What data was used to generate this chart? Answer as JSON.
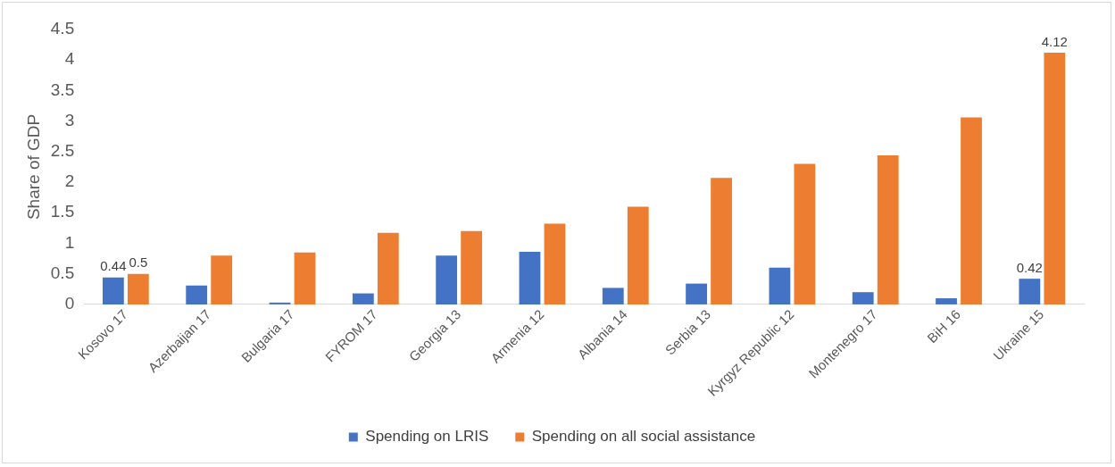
{
  "chart_data": {
    "type": "bar",
    "ylabel": "Share of GDP",
    "categories": [
      "Kosovo 17",
      "Azerbaijan 17",
      "Bulgaria 17",
      "FYROM 17",
      "Georgia 13",
      "Armenia 12",
      "Albania 14",
      "Serbia 13",
      "Kyrgyz Republic 12",
      "Montenegro 17",
      "BiH 16",
      "Ukraine 15"
    ],
    "series": [
      {
        "name": "Spending on LRIS",
        "color": "#4472c4",
        "values": [
          0.44,
          0.31,
          0.03,
          0.18,
          0.8,
          0.86,
          0.27,
          0.34,
          0.6,
          0.2,
          0.1,
          0.42
        ],
        "value_labels": [
          "0.44",
          null,
          null,
          null,
          null,
          null,
          null,
          null,
          null,
          null,
          null,
          "0.42"
        ]
      },
      {
        "name": "Spending on all social assistance",
        "color": "#ed7d31",
        "values": [
          0.5,
          0.8,
          0.85,
          1.17,
          1.2,
          1.32,
          1.6,
          2.07,
          2.3,
          2.44,
          3.06,
          4.12
        ],
        "value_labels": [
          "0.5",
          null,
          null,
          null,
          null,
          null,
          null,
          null,
          null,
          null,
          null,
          "4.12"
        ]
      }
    ],
    "ylim": [
      0,
      4.5
    ],
    "yticks": [
      0,
      0.5,
      1,
      1.5,
      2,
      2.5,
      3,
      3.5,
      4,
      4.5
    ],
    "grid": false,
    "legend": "bottom"
  }
}
